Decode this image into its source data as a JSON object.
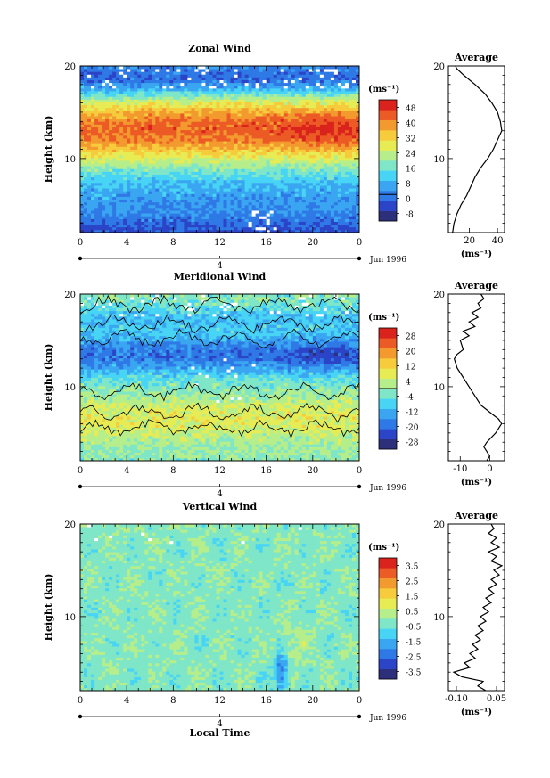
{
  "chart_data": [
    {
      "type": "heatmap",
      "title": "Zonal Wind",
      "ylabel": "Height (km)",
      "xlabel": "",
      "xlim": [
        0,
        24
      ],
      "ylim": [
        2,
        20
      ],
      "xticks": [
        "0",
        "4",
        "8",
        "12",
        "16",
        "20",
        "0"
      ],
      "yticks": [
        "10",
        "20"
      ],
      "date_label": "4",
      "date_suffix": "Jun 1996",
      "colorbar": {
        "unit": "(ms⁻¹)",
        "ticks": [
          "48",
          "40",
          "32",
          "24",
          "16",
          "8",
          "0",
          "-8"
        ],
        "range": [
          -12,
          52
        ]
      },
      "profile": {
        "title": "Average",
        "yticks": [
          "10",
          "20"
        ],
        "xticks": [
          "20",
          "40"
        ],
        "xlim": [
          5,
          45
        ],
        "xlabel": "(ms⁻¹)",
        "points": [
          [
            8,
            2.0
          ],
          [
            9,
            3.0
          ],
          [
            11,
            4.0
          ],
          [
            14,
            5.0
          ],
          [
            18,
            6.0
          ],
          [
            21,
            7.0
          ],
          [
            24,
            8.0
          ],
          [
            28,
            9.0
          ],
          [
            33,
            10.0
          ],
          [
            37,
            11.0
          ],
          [
            40,
            12.0
          ],
          [
            43,
            13.0
          ],
          [
            42,
            14.0
          ],
          [
            40,
            15.0
          ],
          [
            36,
            16.0
          ],
          [
            31,
            17.0
          ],
          [
            24,
            18.0
          ],
          [
            16,
            19.0
          ],
          [
            11,
            19.7
          ],
          [
            10,
            20.0
          ]
        ]
      }
    },
    {
      "type": "heatmap",
      "title": "Meridional Wind",
      "ylabel": "Height (km)",
      "xlabel": "",
      "xlim": [
        0,
        24
      ],
      "ylim": [
        2,
        20
      ],
      "xticks": [
        "0",
        "4",
        "8",
        "12",
        "16",
        "20",
        "0"
      ],
      "yticks": [
        "10",
        "20"
      ],
      "date_label": "4",
      "date_suffix": "Jun 1996",
      "colorbar": {
        "unit": "(ms⁻¹)",
        "ticks": [
          "28",
          "20",
          "12",
          "4",
          "-4",
          "-12",
          "-20",
          "-28"
        ],
        "range": [
          -32,
          32
        ]
      },
      "profile": {
        "title": "Average",
        "yticks": [
          "10",
          "20"
        ],
        "xticks": [
          "-10",
          "0"
        ],
        "xlim": [
          -14,
          5
        ],
        "xlabel": "(ms⁻¹)",
        "points": [
          [
            -1,
            2.0
          ],
          [
            0,
            2.5
          ],
          [
            -1,
            3.0
          ],
          [
            -2,
            3.5
          ],
          [
            -1,
            4.0
          ],
          [
            2,
            5.0
          ],
          [
            4,
            6.0
          ],
          [
            3,
            6.5
          ],
          [
            1,
            7.0
          ],
          [
            -1,
            7.5
          ],
          [
            -3,
            8.0
          ],
          [
            -5,
            9.0
          ],
          [
            -7,
            10.0
          ],
          [
            -9,
            11.0
          ],
          [
            -11,
            12.0
          ],
          [
            -12,
            13.0
          ],
          [
            -11,
            13.5
          ],
          [
            -9,
            14.0
          ],
          [
            -10,
            15.0
          ],
          [
            -7,
            15.5
          ],
          [
            -9,
            16.0
          ],
          [
            -5,
            16.5
          ],
          [
            -7,
            17.0
          ],
          [
            -4,
            17.5
          ],
          [
            -6,
            18.0
          ],
          [
            -3,
            18.5
          ],
          [
            -4,
            19.0
          ],
          [
            -2,
            19.5
          ],
          [
            -3,
            20.0
          ]
        ]
      }
    },
    {
      "type": "heatmap",
      "title": "Vertical Wind",
      "ylabel": "Height (km)",
      "xlabel": "Local Time",
      "xlim": [
        0,
        24
      ],
      "ylim": [
        2,
        20
      ],
      "xticks": [
        "0",
        "4",
        "8",
        "12",
        "16",
        "20",
        "0"
      ],
      "yticks": [
        "10",
        "20"
      ],
      "date_label": "4",
      "date_suffix": "Jun 1996",
      "colorbar": {
        "unit": "(ms⁻¹)",
        "ticks": [
          "3.5",
          "2.5",
          "1.5",
          "0.5",
          "-0.5",
          "-1.5",
          "-2.5",
          "-3.5"
        ],
        "range": [
          -4,
          4
        ]
      },
      "profile": {
        "title": "Average",
        "yticks": [
          "10",
          "20"
        ],
        "xticks": [
          "-0.10",
          "0.05"
        ],
        "xlim": [
          -0.13,
          0.08
        ],
        "xlabel": "(ms⁻¹)",
        "points": [
          [
            0.01,
            2.0
          ],
          [
            -0.02,
            2.5
          ],
          [
            0.0,
            3.0
          ],
          [
            -0.08,
            3.5
          ],
          [
            -0.11,
            4.0
          ],
          [
            -0.05,
            4.5
          ],
          [
            -0.07,
            5.0
          ],
          [
            -0.03,
            5.5
          ],
          [
            -0.05,
            6.0
          ],
          [
            -0.02,
            6.5
          ],
          [
            -0.04,
            7.0
          ],
          [
            -0.01,
            7.5
          ],
          [
            -0.03,
            8.0
          ],
          [
            0.0,
            8.5
          ],
          [
            -0.02,
            9.0
          ],
          [
            0.01,
            9.5
          ],
          [
            -0.01,
            10.0
          ],
          [
            0.02,
            10.5
          ],
          [
            0.0,
            11.0
          ],
          [
            0.03,
            11.5
          ],
          [
            0.01,
            12.0
          ],
          [
            0.04,
            12.5
          ],
          [
            0.02,
            13.0
          ],
          [
            0.05,
            13.5
          ],
          [
            0.03,
            14.0
          ],
          [
            0.06,
            14.5
          ],
          [
            0.04,
            15.0
          ],
          [
            0.07,
            15.5
          ],
          [
            0.03,
            16.0
          ],
          [
            0.05,
            16.5
          ],
          [
            0.02,
            17.0
          ],
          [
            0.06,
            17.5
          ],
          [
            0.03,
            18.0
          ],
          [
            0.05,
            18.5
          ],
          [
            0.02,
            19.0
          ],
          [
            0.04,
            19.5
          ],
          [
            0.03,
            20.0
          ]
        ]
      }
    }
  ],
  "colors": {
    "scale": [
      "#2c2f7a",
      "#2b44c8",
      "#2f79e6",
      "#3aa6f2",
      "#48d4f4",
      "#7fe6c8",
      "#b5ee8a",
      "#e7ec55",
      "#f6cb3c",
      "#f39a2f",
      "#ec5a25",
      "#d9231c"
    ]
  }
}
